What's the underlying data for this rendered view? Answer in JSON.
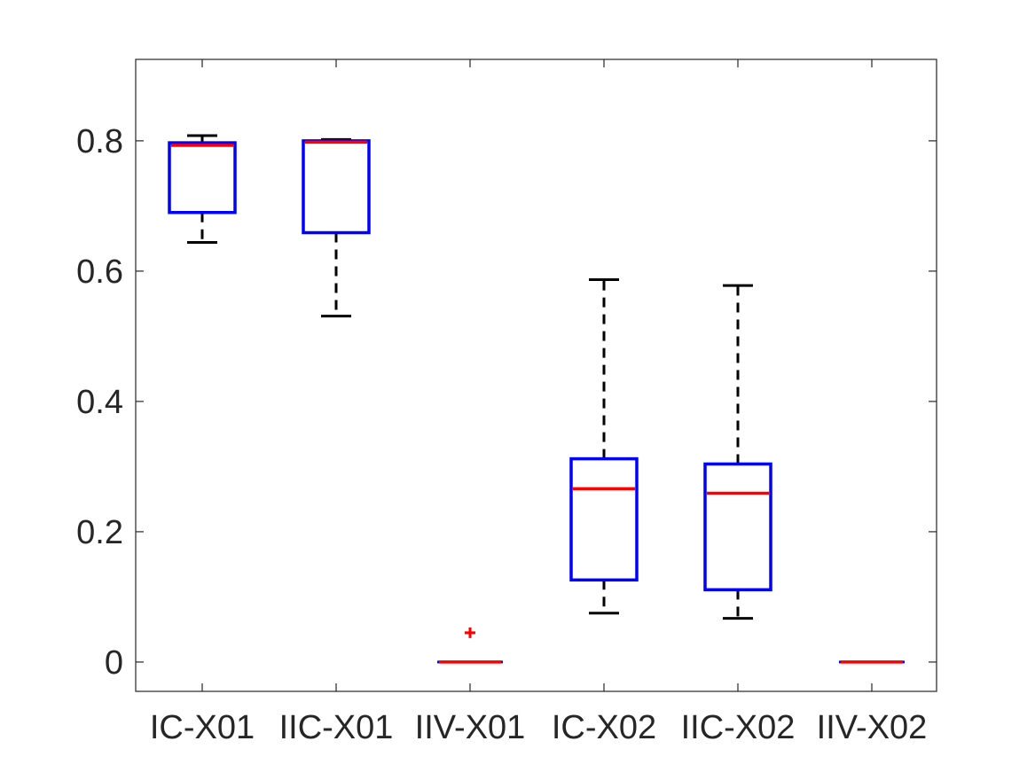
{
  "chart_data": {
    "type": "boxplot",
    "title": "",
    "xlabel": "",
    "ylabel": "",
    "categories": [
      "IC-X01",
      "IIC-X01",
      "IIV-X01",
      "IC-X02",
      "IIC-X02",
      "IIV-X02"
    ],
    "ylim": [
      -0.045,
      0.925
    ],
    "yticks": [
      0,
      0.2,
      0.4,
      0.6,
      0.8
    ],
    "ytick_labels": [
      "0",
      "0.2",
      "0.4",
      "0.6",
      "0.8"
    ],
    "grid": false,
    "legend": "none",
    "boxes": [
      {
        "category": "IC-X01",
        "whisker_low": 0.644,
        "q1": 0.69,
        "median": 0.793,
        "q3": 0.797,
        "whisker_high": 0.808,
        "outliers": []
      },
      {
        "category": "IIC-X01",
        "whisker_low": 0.531,
        "q1": 0.659,
        "median": 0.798,
        "q3": 0.8,
        "whisker_high": 0.802,
        "outliers": []
      },
      {
        "category": "IIV-X01",
        "whisker_low": 0.0,
        "q1": 0.0,
        "median": 0.0,
        "q3": 0.0,
        "whisker_high": 0.0,
        "outliers": [
          0.045
        ]
      },
      {
        "category": "IC-X02",
        "whisker_low": 0.075,
        "q1": 0.126,
        "median": 0.266,
        "q3": 0.312,
        "whisker_high": 0.587,
        "outliers": []
      },
      {
        "category": "IIC-X02",
        "whisker_low": 0.067,
        "q1": 0.111,
        "median": 0.259,
        "q3": 0.304,
        "whisker_high": 0.578,
        "outliers": []
      },
      {
        "category": "IIV-X02",
        "whisker_low": 0.0,
        "q1": 0.0,
        "median": 0.0,
        "q3": 0.0,
        "whisker_high": 0.0,
        "outliers": []
      }
    ],
    "colors": {
      "box": "#0000ff",
      "median": "#ff0000",
      "whisker": "#000000",
      "outlier": "#ff0000",
      "axis": "#262626"
    }
  }
}
